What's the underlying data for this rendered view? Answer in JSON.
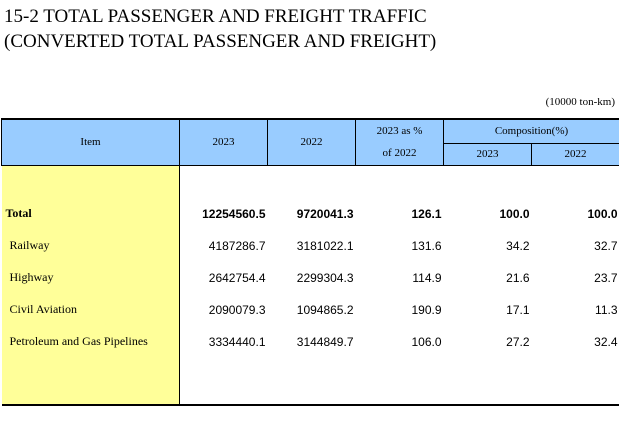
{
  "title_line1": "15-2  TOTAL PASSENGER AND FREIGHT TRAFFIC",
  "title_line2": "(CONVERTED TOTAL PASSENGER AND FREIGHT)",
  "unit": "(10000 ton-km)",
  "headers": {
    "item": "Item",
    "y2023": "2023",
    "y2022": "2022",
    "pct_line1": "2023 as %",
    "pct_line2": "of  2022",
    "composition": "Composition(%)",
    "comp2023": "2023",
    "comp2022": "2022"
  },
  "rows": [
    {
      "item": "Total",
      "v2023": "12254560.5",
      "v2022": "9720041.3",
      "pct": "126.1",
      "c2023": "100.0",
      "c2022": "100.0"
    },
    {
      "item": "Railway",
      "v2023": "4187286.7",
      "v2022": "3181022.1",
      "pct": "131.6",
      "c2023": "34.2",
      "c2022": "32.7"
    },
    {
      "item": "Highway",
      "v2023": "2642754.4",
      "v2022": "2299304.3",
      "pct": "114.9",
      "c2023": "21.6",
      "c2022": "23.7"
    },
    {
      "item": "Civil Aviation",
      "v2023": "2090079.3",
      "v2022": "1094865.2",
      "pct": "190.9",
      "c2023": "17.1",
      "c2022": "11.3"
    },
    {
      "item": "Petroleum and Gas Pipelines",
      "v2023": "3334440.1",
      "v2022": "3144849.7",
      "pct": "106.0",
      "c2023": "27.2",
      "c2022": "32.4"
    }
  ],
  "colors": {
    "header_bg": "#99ccff",
    "item_bg": "#ffff99"
  }
}
